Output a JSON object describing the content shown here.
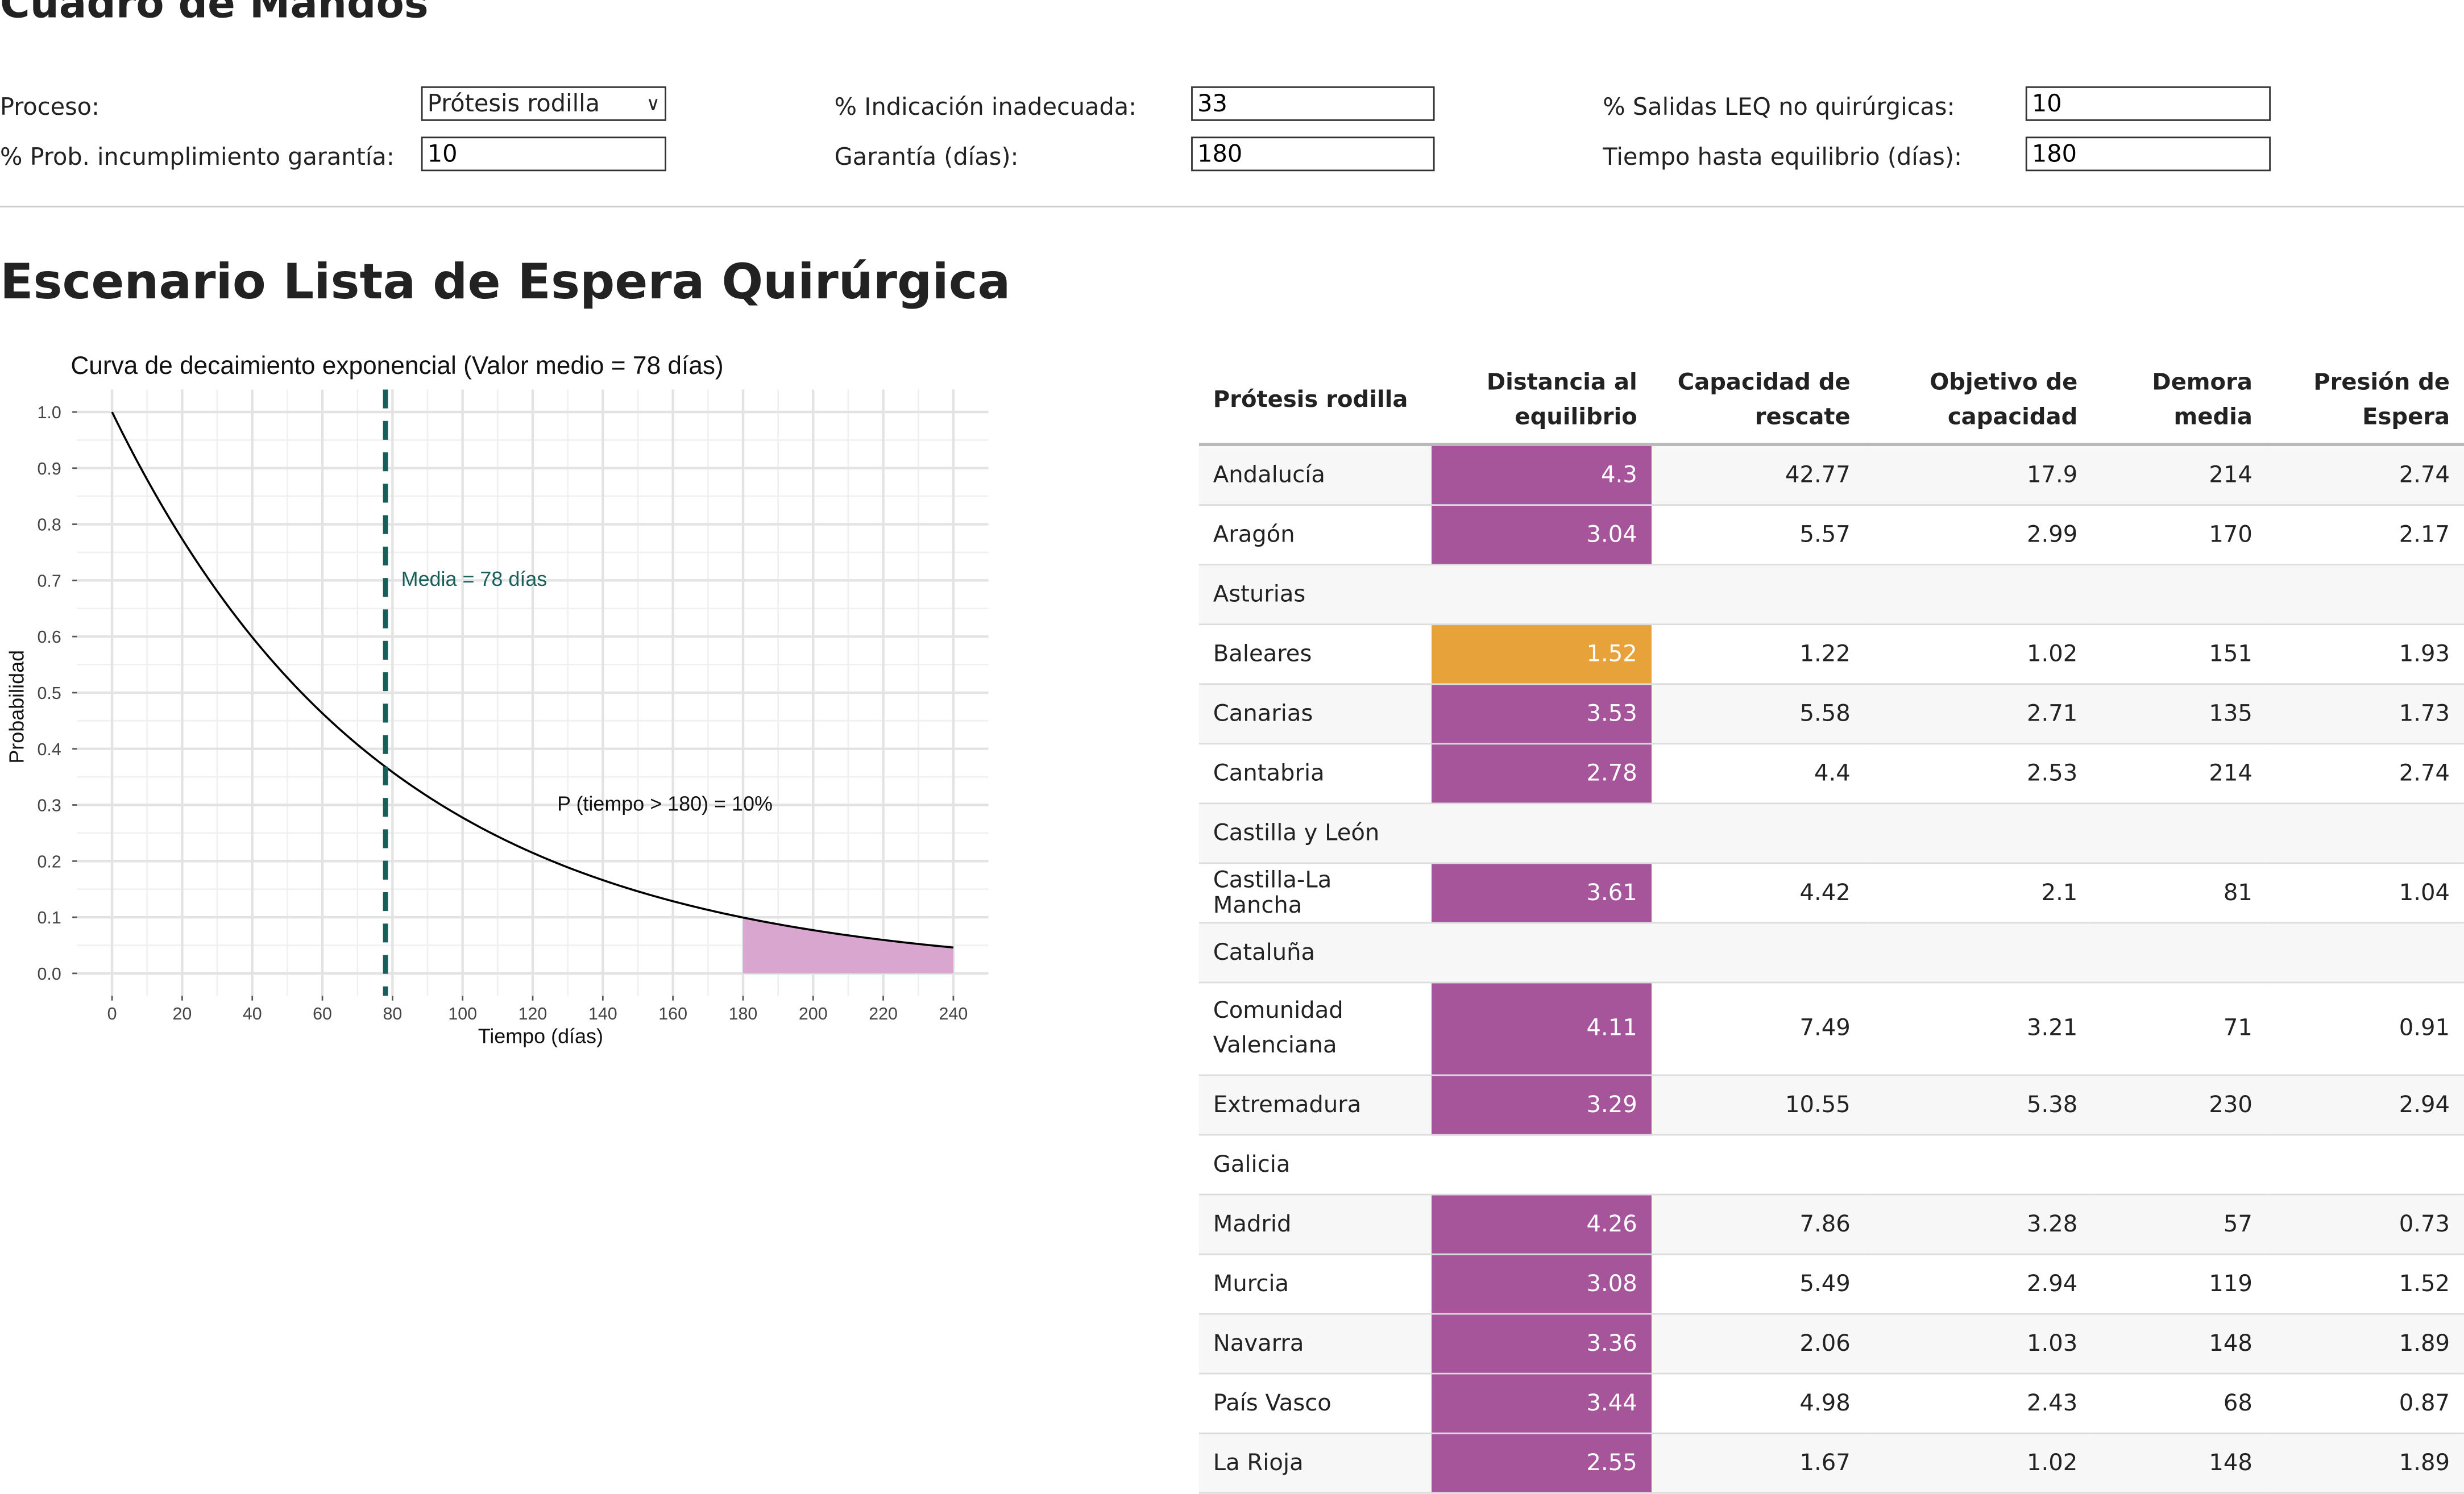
{
  "dashboard": {
    "title": "Cuadro de Mandos",
    "proceso": {
      "label": "Proceso:",
      "value": "Prótesis rodilla"
    },
    "prob_incumplimiento": {
      "label": "% Prob. incumplimiento garantía:",
      "value": "10"
    },
    "indicacion": {
      "label": "% Indicación inadecuada:",
      "value": "33"
    },
    "garantia": {
      "label": "Garantía (días):",
      "value": "180"
    },
    "salidas": {
      "label": "% Salidas LEQ no quirúrgicas:",
      "value": "10"
    },
    "tiempo_equilibrio": {
      "label": "Tiempo hasta equilibrio (días):",
      "value": "180"
    }
  },
  "section_title": "Escenario Lista de Espera Quirúrgica",
  "colors": {
    "decay_line": "#000000",
    "mean_line": "#1a5e5a",
    "shade": "#d9a6cf",
    "purple": "#a6559b",
    "orange": "#e8a23a"
  },
  "chart_data": {
    "type": "line",
    "title": "Curva de decaimiento exponencial (Valor medio = 78 días)",
    "xlabel": "Tiempo (días)",
    "ylabel": "Probabilidad",
    "xlim": [
      -10,
      250
    ],
    "ylim": [
      -0.04,
      1.04
    ],
    "xticks": [
      0,
      20,
      40,
      60,
      80,
      100,
      120,
      140,
      160,
      180,
      200,
      220,
      240
    ],
    "yticks": [
      0.0,
      0.1,
      0.2,
      0.3,
      0.4,
      0.5,
      0.6,
      0.7,
      0.8,
      0.9,
      1.0
    ],
    "series": [
      {
        "type": "exponential-decay",
        "mean": 78,
        "x_range": [
          0,
          240
        ]
      }
    ],
    "vline": {
      "x": 78,
      "label": "Media = 78 días"
    },
    "shade_from": 180,
    "annotation": "P (tiempo > 180) = 10%",
    "grid": true
  },
  "table": {
    "headers": [
      [
        "Prótesis rodilla"
      ],
      [
        "Distancia al",
        "equilibrio"
      ],
      [
        "Capacidad de",
        "rescate"
      ],
      [
        "Objetivo de",
        "capacidad"
      ],
      [
        "Demora",
        "media"
      ],
      [
        "Presión de",
        "Espera"
      ]
    ],
    "rows": [
      {
        "region": [
          "Andalucía"
        ],
        "dist": "4.3",
        "color": "#a6559b",
        "rescate": "42.77",
        "objetivo": "17.9",
        "demora": "214",
        "presion": "2.74"
      },
      {
        "region": [
          "Aragón"
        ],
        "dist": "3.04",
        "color": "#a6559b",
        "rescate": "5.57",
        "objetivo": "2.99",
        "demora": "170",
        "presion": "2.17"
      },
      {
        "region": [
          "Asturias"
        ],
        "dist": "",
        "color": "",
        "rescate": "",
        "objetivo": "",
        "demora": "",
        "presion": ""
      },
      {
        "region": [
          "Baleares"
        ],
        "dist": "1.52",
        "color": "#e8a23a",
        "rescate": "1.22",
        "objetivo": "1.02",
        "demora": "151",
        "presion": "1.93"
      },
      {
        "region": [
          "Canarias"
        ],
        "dist": "3.53",
        "color": "#a6559b",
        "rescate": "5.58",
        "objetivo": "2.71",
        "demora": "135",
        "presion": "1.73"
      },
      {
        "region": [
          "Cantabria"
        ],
        "dist": "2.78",
        "color": "#a6559b",
        "rescate": "4.4",
        "objetivo": "2.53",
        "demora": "214",
        "presion": "2.74"
      },
      {
        "region": [
          "Castilla y León"
        ],
        "dist": "",
        "color": "",
        "rescate": "",
        "objetivo": "",
        "demora": "",
        "presion": ""
      },
      {
        "region": [
          "Castilla-La Mancha"
        ],
        "dist": "3.61",
        "color": "#a6559b",
        "rescate": "4.42",
        "objetivo": "2.1",
        "demora": "81",
        "presion": "1.04"
      },
      {
        "region": [
          "Cataluña"
        ],
        "dist": "",
        "color": "",
        "rescate": "",
        "objetivo": "",
        "demora": "",
        "presion": ""
      },
      {
        "region": [
          "Comunidad",
          "Valenciana"
        ],
        "dist": "4.11",
        "color": "#a6559b",
        "rescate": "7.49",
        "objetivo": "3.21",
        "demora": "71",
        "presion": "0.91"
      },
      {
        "region": [
          "Extremadura"
        ],
        "dist": "3.29",
        "color": "#a6559b",
        "rescate": "10.55",
        "objetivo": "5.38",
        "demora": "230",
        "presion": "2.94"
      },
      {
        "region": [
          "Galicia"
        ],
        "dist": "",
        "color": "",
        "rescate": "",
        "objetivo": "",
        "demora": "",
        "presion": ""
      },
      {
        "region": [
          "Madrid"
        ],
        "dist": "4.26",
        "color": "#a6559b",
        "rescate": "7.86",
        "objetivo": "3.28",
        "demora": "57",
        "presion": "0.73"
      },
      {
        "region": [
          "Murcia"
        ],
        "dist": "3.08",
        "color": "#a6559b",
        "rescate": "5.49",
        "objetivo": "2.94",
        "demora": "119",
        "presion": "1.52"
      },
      {
        "region": [
          "Navarra"
        ],
        "dist": "3.36",
        "color": "#a6559b",
        "rescate": "2.06",
        "objetivo": "1.03",
        "demora": "148",
        "presion": "1.89"
      },
      {
        "region": [
          "País Vasco"
        ],
        "dist": "3.44",
        "color": "#a6559b",
        "rescate": "4.98",
        "objetivo": "2.43",
        "demora": "68",
        "presion": "0.87"
      },
      {
        "region": [
          "La Rioja"
        ],
        "dist": "2.55",
        "color": "#a6559b",
        "rescate": "1.67",
        "objetivo": "1.02",
        "demora": "148",
        "presion": "1.89"
      }
    ]
  }
}
